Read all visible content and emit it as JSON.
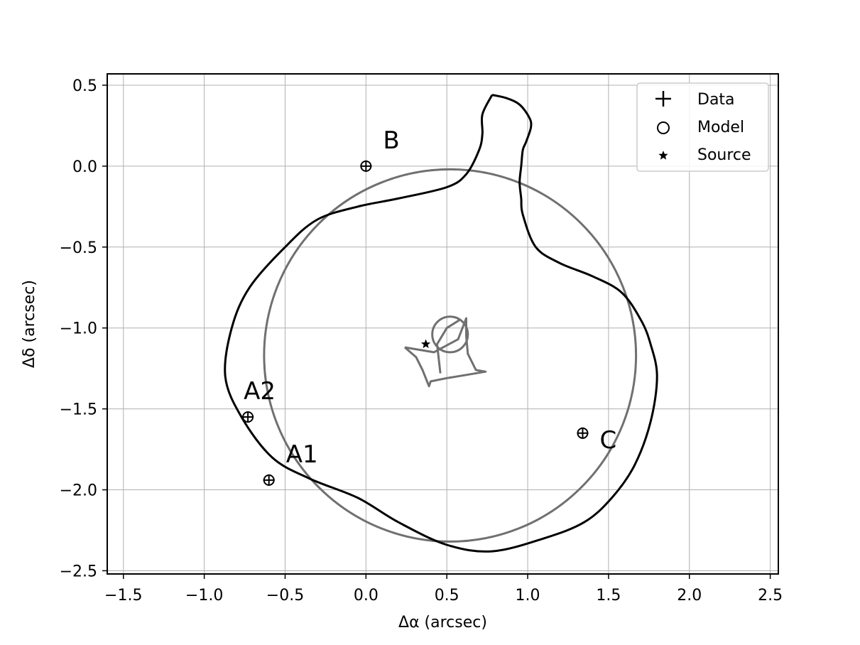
{
  "chart_data": {
    "type": "scatter",
    "title": "",
    "xlabel": "Δα (arcsec)",
    "ylabel": "Δδ (arcsec)",
    "xlim": [
      -1.6,
      2.55
    ],
    "ylim": [
      -2.52,
      0.57
    ],
    "xticks": [
      -1.5,
      -1.0,
      -0.5,
      0.0,
      0.5,
      1.0,
      1.5,
      2.0,
      2.5
    ],
    "yticks": [
      0.5,
      0.0,
      -0.5,
      -1.0,
      -1.5,
      -2.0,
      -2.5
    ],
    "xtick_labels": [
      "−1.5",
      "−1.0",
      "−0.5",
      "0.0",
      "0.5",
      "1.0",
      "1.5",
      "2.0",
      "2.5"
    ],
    "ytick_labels": [
      "0.5",
      "0.0",
      "−0.5",
      "−1.0",
      "−1.5",
      "−2.0",
      "−2.5"
    ],
    "grid": true,
    "legend_position": "top-right",
    "legend": [
      {
        "marker": "plus",
        "label": "Data"
      },
      {
        "marker": "circle",
        "label": "Model"
      },
      {
        "marker": "star",
        "label": "Source"
      }
    ],
    "images": [
      {
        "name": "B",
        "x": 0.0,
        "y": 0.0
      },
      {
        "name": "A2",
        "x": -0.73,
        "y": -1.55
      },
      {
        "name": "A1",
        "x": -0.6,
        "y": -1.94
      },
      {
        "name": "C",
        "x": 1.34,
        "y": -1.65
      }
    ],
    "source": {
      "x": 0.37,
      "y": -1.1
    },
    "colors": {
      "critical_curve": "#000000",
      "einstein_circle": "#707070",
      "caustic": "#707070",
      "grid": "#b0b0b0"
    },
    "critical_curve": [
      [
        0.78,
        0.44
      ],
      [
        0.87,
        0.42
      ],
      [
        0.95,
        0.38
      ],
      [
        1.01,
        0.3
      ],
      [
        1.02,
        0.24
      ],
      [
        0.99,
        0.15
      ],
      [
        0.97,
        0.1
      ],
      [
        0.96,
        0.0
      ],
      [
        0.95,
        -0.1
      ],
      [
        0.96,
        -0.2
      ],
      [
        0.97,
        -0.3
      ],
      [
        1.05,
        -0.5
      ],
      [
        1.2,
        -0.6
      ],
      [
        1.4,
        -0.68
      ],
      [
        1.58,
        -0.78
      ],
      [
        1.7,
        -0.95
      ],
      [
        1.76,
        -1.1
      ],
      [
        1.8,
        -1.3
      ],
      [
        1.76,
        -1.58
      ],
      [
        1.66,
        -1.85
      ],
      [
        1.52,
        -2.05
      ],
      [
        1.35,
        -2.2
      ],
      [
        1.1,
        -2.3
      ],
      [
        0.78,
        -2.38
      ],
      [
        0.5,
        -2.34
      ],
      [
        0.2,
        -2.2
      ],
      [
        -0.05,
        -2.05
      ],
      [
        -0.35,
        -1.93
      ],
      [
        -0.58,
        -1.8
      ],
      [
        -0.77,
        -1.55
      ],
      [
        -0.87,
        -1.3
      ],
      [
        -0.83,
        -1.0
      ],
      [
        -0.72,
        -0.75
      ],
      [
        -0.5,
        -0.5
      ],
      [
        -0.3,
        -0.33
      ],
      [
        -0.05,
        -0.25
      ],
      [
        0.2,
        -0.2
      ],
      [
        0.5,
        -0.13
      ],
      [
        0.62,
        -0.05
      ],
      [
        0.7,
        0.1
      ],
      [
        0.72,
        0.2
      ],
      [
        0.72,
        0.32
      ],
      [
        0.78,
        0.44
      ]
    ],
    "einstein_circle": {
      "center": [
        0.52,
        -1.17
      ],
      "radius": 1.15
    },
    "small_circle": {
      "center": [
        0.52,
        -1.04
      ],
      "radius": 0.11
    },
    "caustic_astroid": [
      [
        0.24,
        -1.12
      ],
      [
        0.42,
        -1.15
      ],
      [
        0.57,
        -1.07
      ],
      [
        0.62,
        -0.94
      ],
      [
        0.62,
        -1.05
      ],
      [
        0.63,
        -1.16
      ],
      [
        0.68,
        -1.26
      ],
      [
        0.74,
        -1.27
      ],
      [
        0.62,
        -1.29
      ],
      [
        0.5,
        -1.31
      ],
      [
        0.4,
        -1.33
      ],
      [
        0.39,
        -1.36
      ],
      [
        0.35,
        -1.26
      ],
      [
        0.31,
        -1.18
      ],
      [
        0.24,
        -1.12
      ]
    ],
    "caustic_fold": [
      [
        0.46,
        -1.28
      ],
      [
        0.44,
        -1.1
      ],
      [
        0.5,
        -1.0
      ],
      [
        0.58,
        -0.95
      ]
    ]
  }
}
